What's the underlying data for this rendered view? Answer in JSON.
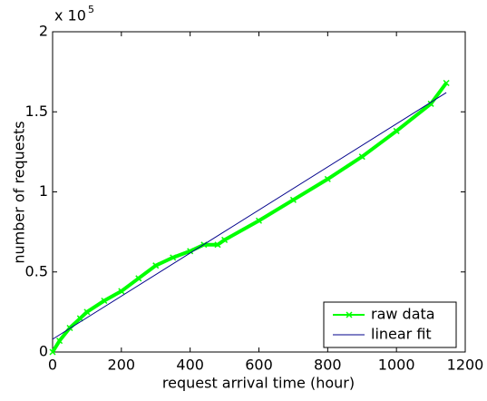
{
  "chart_data": {
    "type": "line",
    "xlabel": "request arrival time (hour)",
    "ylabel": "number of requests",
    "y_scale_label": "x 10",
    "y_scale_exponent": "5",
    "xlim": [
      0,
      1200
    ],
    "xticks": [
      0,
      200,
      400,
      600,
      800,
      1000,
      1200
    ],
    "ylim": [
      0,
      2
    ],
    "yticks": [
      0,
      0.5,
      1,
      1.5,
      2
    ],
    "legend": "lower right",
    "series": [
      {
        "name": "raw data",
        "color": "#00ff00",
        "marker": "x",
        "x": [
          0,
          20,
          50,
          80,
          100,
          150,
          200,
          250,
          300,
          350,
          400,
          440,
          480,
          500,
          600,
          700,
          800,
          900,
          1000,
          1100,
          1145
        ],
        "values": [
          0,
          0.07,
          0.15,
          0.21,
          0.25,
          0.32,
          0.38,
          0.46,
          0.54,
          0.59,
          0.63,
          0.67,
          0.67,
          0.7,
          0.82,
          0.95,
          1.08,
          1.22,
          1.38,
          1.55,
          1.68
        ]
      },
      {
        "name": "linear fit",
        "color": "#00008b",
        "x": [
          0,
          1145
        ],
        "values": [
          0.08,
          1.62
        ]
      }
    ]
  }
}
